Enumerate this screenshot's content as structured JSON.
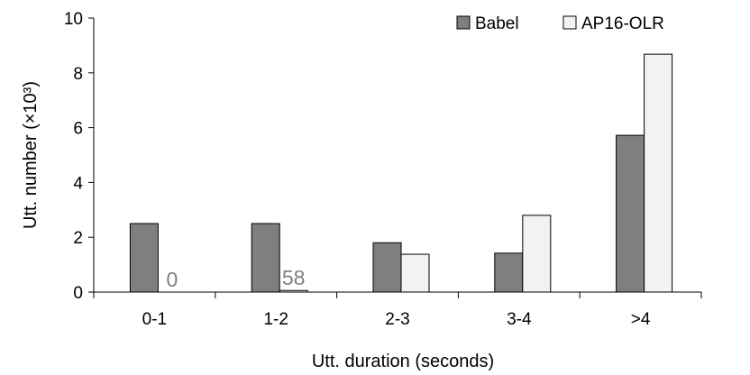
{
  "chart_data": {
    "type": "bar",
    "categories": [
      "0-1",
      "1-2",
      "2-3",
      "3-4",
      ">4"
    ],
    "series": [
      {
        "name": "Babel",
        "values": [
          2.5,
          2.5,
          1.8,
          1.42,
          5.72
        ],
        "color": "#7f7f7f"
      },
      {
        "name": "AP16-OLR",
        "values": [
          0,
          0.058,
          1.38,
          2.8,
          8.68
        ],
        "color": "#f2f2f2"
      }
    ],
    "data_labels": [
      {
        "series": 1,
        "category": 0,
        "text": "0"
      },
      {
        "series": 1,
        "category": 1,
        "text": "58"
      }
    ],
    "xlabel": "Utt. duration (seconds)",
    "ylabel": "Utt. number (×10³)",
    "ylim": [
      0,
      10
    ],
    "yticks": [
      "0",
      "2",
      "4",
      "6",
      "8",
      "10"
    ],
    "grid": false,
    "legend_position": "top-right"
  }
}
